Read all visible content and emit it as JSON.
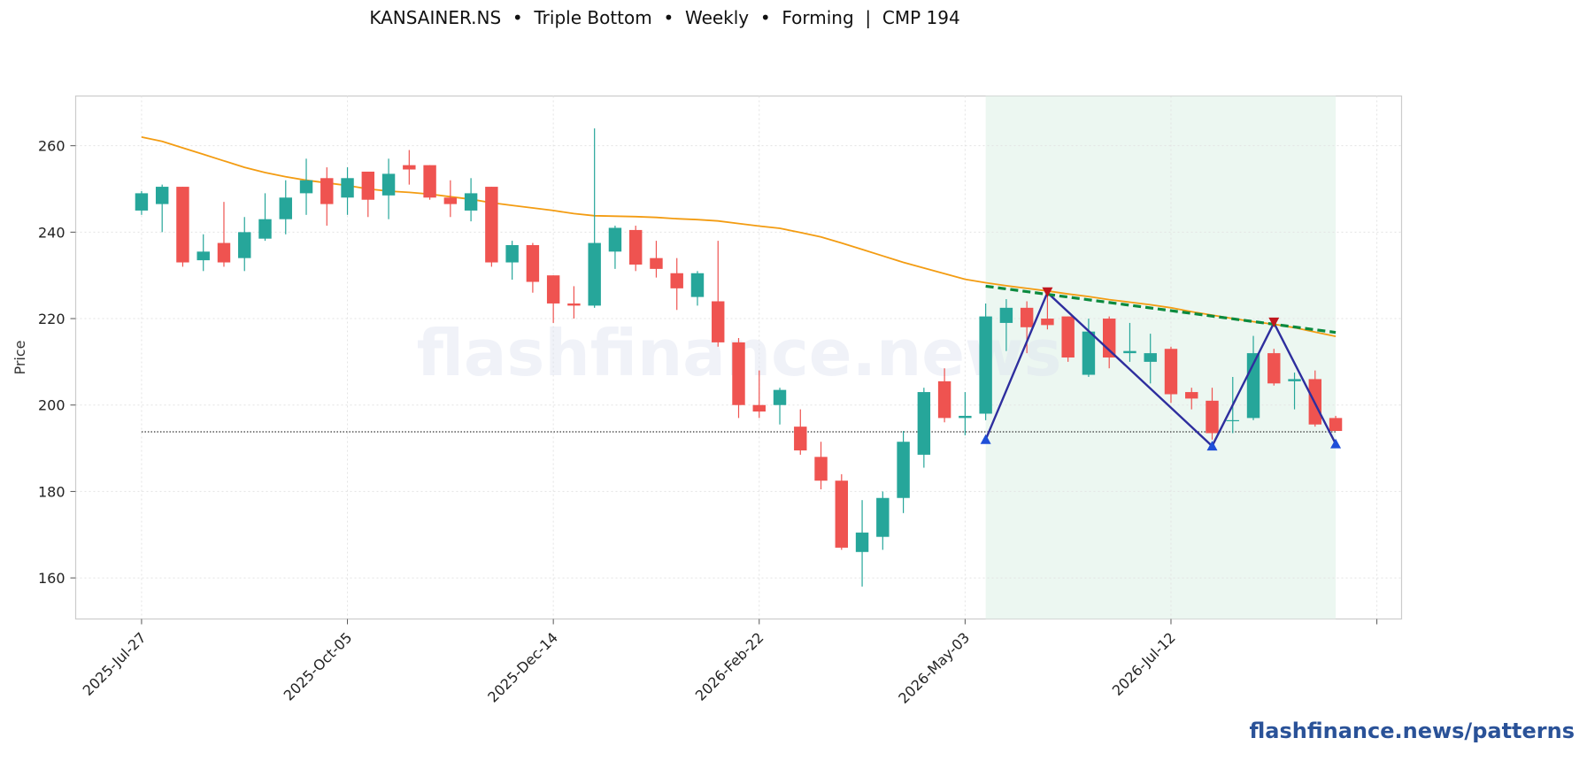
{
  "title": "KANSAINER.NS  •  Triple Bottom  •  Weekly  •  Forming  |  CMP 194",
  "watermark": "flashfinance.news",
  "footer": "flashfinance.news/patterns",
  "colors": {
    "up": "#26a69a",
    "down": "#ef5350",
    "sma": "#f39c12",
    "pattern_line": "#2e2e9e",
    "trendline": "#0b8a3e",
    "pattern_zone": "#e6f4ec",
    "trough_marker": "#1f4fd8",
    "peak_marker": "#c0171d",
    "support": "#333333"
  },
  "chart_data": {
    "type": "candlestick",
    "xlabel": "",
    "ylabel": "Price",
    "ylim": [
      150.5,
      271.5
    ],
    "yticks": [
      160,
      180,
      200,
      220,
      240,
      260
    ],
    "xticks": [
      {
        "index": 0,
        "label": "2025-Jul-27"
      },
      {
        "index": 10,
        "label": "2025-Oct-05"
      },
      {
        "index": 20,
        "label": "2025-Dec-14"
      },
      {
        "index": 30,
        "label": "2026-Feb-22"
      },
      {
        "index": 40,
        "label": "2026-May-03"
      },
      {
        "index": 50,
        "label": "2026-Jul-12"
      },
      {
        "index": 60,
        "label": ""
      }
    ],
    "xlim": [
      -3.2,
      61.2
    ],
    "grid": true,
    "candles": [
      {
        "date": "2025-Jul-27",
        "o": 245,
        "h": 249.5,
        "l": 244,
        "c": 249
      },
      {
        "date": "2025-Aug-03",
        "o": 246.5,
        "h": 251,
        "l": 240,
        "c": 250.5
      },
      {
        "date": "2025-Aug-10",
        "o": 250.5,
        "h": 250.5,
        "l": 232,
        "c": 233
      },
      {
        "date": "2025-Aug-17",
        "o": 233.5,
        "h": 239.5,
        "l": 231,
        "c": 235.5
      },
      {
        "date": "2025-Aug-24",
        "o": 237.5,
        "h": 247,
        "l": 232,
        "c": 233
      },
      {
        "date": "2025-Aug-31",
        "o": 234,
        "h": 243.5,
        "l": 231,
        "c": 240
      },
      {
        "date": "2025-Sep-07",
        "o": 238.5,
        "h": 249,
        "l": 238,
        "c": 243
      },
      {
        "date": "2025-Sep-14",
        "o": 243,
        "h": 252,
        "l": 239.5,
        "c": 248
      },
      {
        "date": "2025-Sep-21",
        "o": 249,
        "h": 257,
        "l": 244,
        "c": 252
      },
      {
        "date": "2025-Sep-28",
        "o": 252.5,
        "h": 255,
        "l": 241.5,
        "c": 246.5
      },
      {
        "date": "2025-Oct-05",
        "o": 248,
        "h": 255,
        "l": 244,
        "c": 252.5
      },
      {
        "date": "2025-Oct-12",
        "o": 254,
        "h": 254,
        "l": 243.5,
        "c": 247.5
      },
      {
        "date": "2025-Oct-19",
        "o": 248.5,
        "h": 257,
        "l": 243,
        "c": 253.5
      },
      {
        "date": "2025-Oct-26",
        "o": 255.5,
        "h": 259,
        "l": 251,
        "c": 254.5
      },
      {
        "date": "2025-Nov-02",
        "o": 255.5,
        "h": 255.5,
        "l": 247.5,
        "c": 248
      },
      {
        "date": "2025-Nov-09",
        "o": 248,
        "h": 252,
        "l": 243.5,
        "c": 246.5
      },
      {
        "date": "2025-Nov-16",
        "o": 245,
        "h": 252.5,
        "l": 242.5,
        "c": 249
      },
      {
        "date": "2025-Nov-23",
        "o": 250.5,
        "h": 250.5,
        "l": 232,
        "c": 233
      },
      {
        "date": "2025-Nov-30",
        "o": 233,
        "h": 238,
        "l": 229,
        "c": 237
      },
      {
        "date": "2025-Dec-07",
        "o": 237,
        "h": 237.5,
        "l": 226,
        "c": 228.5
      },
      {
        "date": "2025-Dec-14",
        "o": 230,
        "h": 230,
        "l": 219,
        "c": 223.5
      },
      {
        "date": "2025-Dec-21",
        "o": 223.5,
        "h": 227.5,
        "l": 220,
        "c": 223
      },
      {
        "date": "2025-Dec-28",
        "o": 223,
        "h": 264,
        "l": 222.5,
        "c": 237.5
      },
      {
        "date": "2026-Jan-04",
        "o": 235.5,
        "h": 241.5,
        "l": 231.5,
        "c": 241
      },
      {
        "date": "2026-Jan-11",
        "o": 240.5,
        "h": 241.5,
        "l": 231,
        "c": 232.5
      },
      {
        "date": "2026-Jan-18",
        "o": 234,
        "h": 238,
        "l": 229.5,
        "c": 231.5
      },
      {
        "date": "2026-Jan-25",
        "o": 230.5,
        "h": 234,
        "l": 222,
        "c": 227
      },
      {
        "date": "2026-Feb-01",
        "o": 225,
        "h": 231,
        "l": 223,
        "c": 230.5
      },
      {
        "date": "2026-Feb-08",
        "o": 224,
        "h": 238,
        "l": 213.5,
        "c": 214.5
      },
      {
        "date": "2026-Feb-15",
        "o": 214.5,
        "h": 215.5,
        "l": 197,
        "c": 200
      },
      {
        "date": "2026-Feb-22",
        "o": 200,
        "h": 208,
        "l": 197,
        "c": 198.5
      },
      {
        "date": "2026-Mar-01",
        "o": 200,
        "h": 204,
        "l": 195.5,
        "c": 203.5
      },
      {
        "date": "2026-Mar-08",
        "o": 195,
        "h": 199,
        "l": 188.5,
        "c": 189.5
      },
      {
        "date": "2026-Mar-15",
        "o": 188,
        "h": 191.5,
        "l": 180.5,
        "c": 182.5
      },
      {
        "date": "2026-Mar-22",
        "o": 182.5,
        "h": 184,
        "l": 166.5,
        "c": 167
      },
      {
        "date": "2026-Mar-29",
        "o": 166,
        "h": 178,
        "l": 158,
        "c": 170.5
      },
      {
        "date": "2026-Apr-05",
        "o": 169.5,
        "h": 180,
        "l": 166.5,
        "c": 178.5
      },
      {
        "date": "2026-Apr-12",
        "o": 178.5,
        "h": 194,
        "l": 175,
        "c": 191.5
      },
      {
        "date": "2026-Apr-19",
        "o": 188.5,
        "h": 204,
        "l": 185.5,
        "c": 203
      },
      {
        "date": "2026-Apr-26",
        "o": 205.5,
        "h": 208.5,
        "l": 196,
        "c": 197
      },
      {
        "date": "2026-May-03",
        "o": 197,
        "h": 203,
        "l": 193,
        "c": 197.5
      },
      {
        "date": "2026-May-10",
        "o": 198,
        "h": 223.5,
        "l": 196.5,
        "c": 220.5
      },
      {
        "date": "2026-May-17",
        "o": 219,
        "h": 224.5,
        "l": 212.5,
        "c": 222.5
      },
      {
        "date": "2026-May-24",
        "o": 222.5,
        "h": 224,
        "l": 212,
        "c": 218
      },
      {
        "date": "2026-May-31",
        "o": 220,
        "h": 226,
        "l": 217.5,
        "c": 218.5
      },
      {
        "date": "2026-Jun-07",
        "o": 220.5,
        "h": 220.5,
        "l": 210,
        "c": 211
      },
      {
        "date": "2026-Jun-14",
        "o": 207,
        "h": 220,
        "l": 206.5,
        "c": 217
      },
      {
        "date": "2026-Jun-21",
        "o": 220,
        "h": 220.5,
        "l": 208.5,
        "c": 211
      },
      {
        "date": "2026-Jun-28",
        "o": 212,
        "h": 219,
        "l": 210,
        "c": 212.5
      },
      {
        "date": "2026-Jul-05",
        "o": 210,
        "h": 216.5,
        "l": 205,
        "c": 212
      },
      {
        "date": "2026-Jul-12",
        "o": 213,
        "h": 213.5,
        "l": 200.5,
        "c": 202.5
      },
      {
        "date": "2026-Jul-19",
        "o": 203,
        "h": 204,
        "l": 199,
        "c": 201.5
      },
      {
        "date": "2026-Jul-26",
        "o": 201,
        "h": 204,
        "l": 192,
        "c": 193.5
      },
      {
        "date": "2026-Aug-02",
        "o": 196.5,
        "h": 206.5,
        "l": 193.5,
        "c": 196.5
      },
      {
        "date": "2026-Aug-09",
        "o": 197,
        "h": 216,
        "l": 196.5,
        "c": 212
      },
      {
        "date": "2026-Aug-16",
        "o": 212,
        "h": 213,
        "l": 204.5,
        "c": 205
      },
      {
        "date": "2026-Aug-23",
        "o": 205.5,
        "h": 207.5,
        "l": 199,
        "c": 206
      },
      {
        "date": "2026-Aug-30",
        "o": 206,
        "h": 208,
        "l": 195,
        "c": 195.5
      },
      {
        "date": "2026-Sep-06",
        "o": 197,
        "h": 197.5,
        "l": 194,
        "c": 194
      }
    ],
    "sma": [
      [
        0,
        262
      ],
      [
        1,
        261
      ],
      [
        2,
        259.5
      ],
      [
        3,
        258
      ],
      [
        4,
        256.5
      ],
      [
        5,
        255
      ],
      [
        6,
        253.8
      ],
      [
        7,
        252.8
      ],
      [
        8,
        252
      ],
      [
        9,
        251.4
      ],
      [
        10,
        250.8
      ],
      [
        11,
        250
      ],
      [
        12,
        249.5
      ],
      [
        13,
        249.2
      ],
      [
        14,
        248.8
      ],
      [
        15,
        248.2
      ],
      [
        16,
        247.6
      ],
      [
        17,
        246.8
      ],
      [
        18,
        246.2
      ],
      [
        19,
        245.6
      ],
      [
        20,
        245
      ],
      [
        21,
        244.3
      ],
      [
        22,
        243.8
      ],
      [
        23,
        243.7
      ],
      [
        24,
        243.6
      ],
      [
        25,
        243.4
      ],
      [
        26,
        243.1
      ],
      [
        27,
        242.9
      ],
      [
        28,
        242.6
      ],
      [
        29,
        242
      ],
      [
        30,
        241.4
      ],
      [
        31,
        240.9
      ],
      [
        32,
        239.9
      ],
      [
        33,
        238.9
      ],
      [
        34,
        237.5
      ],
      [
        35,
        236
      ],
      [
        36,
        234.5
      ],
      [
        37,
        233
      ],
      [
        38,
        231.7
      ],
      [
        39,
        230.4
      ],
      [
        40,
        229.1
      ],
      [
        41,
        228.3
      ],
      [
        42,
        227.6
      ],
      [
        43,
        227
      ],
      [
        44,
        226.4
      ],
      [
        45,
        225.7
      ],
      [
        46,
        225.1
      ],
      [
        47,
        224.4
      ],
      [
        48,
        223.8
      ],
      [
        49,
        223.2
      ],
      [
        50,
        222.5
      ],
      [
        51,
        221.6
      ],
      [
        52,
        220.8
      ],
      [
        53,
        220
      ],
      [
        54,
        219.3
      ],
      [
        55,
        218.7
      ],
      [
        56,
        217.9
      ],
      [
        57,
        216.9
      ],
      [
        58,
        215.9
      ]
    ],
    "support_level": 193.8,
    "support_range": [
      0,
      58
    ],
    "pattern_zone": [
      41,
      58
    ],
    "pattern_points": [
      [
        41,
        192
      ],
      [
        44,
        226
      ],
      [
        52,
        190.5
      ],
      [
        55,
        219
      ],
      [
        58,
        191
      ]
    ],
    "troughs": [
      [
        41,
        192
      ],
      [
        52,
        190.5
      ],
      [
        58,
        191
      ]
    ],
    "peaks": [
      [
        44,
        226
      ],
      [
        55,
        219
      ]
    ],
    "trendline": [
      [
        41,
        227.5
      ],
      [
        58,
        216.8
      ]
    ]
  }
}
